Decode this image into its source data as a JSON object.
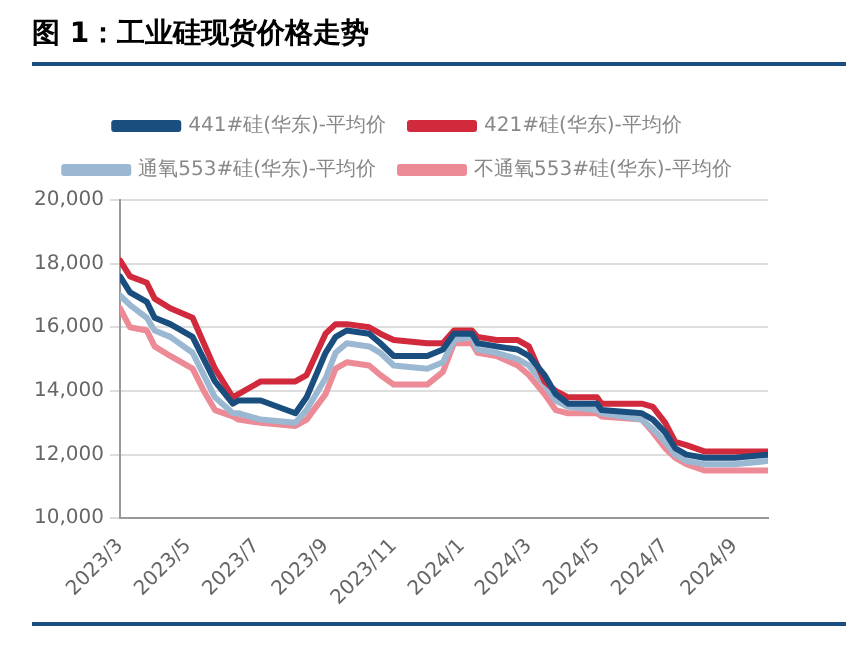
{
  "chart_data": {
    "type": "line",
    "title": "图 1：工业硅现货价格走势",
    "x": [
      "2023-03-01",
      "2023-03-10",
      "2023-03-25",
      "2023-04-01",
      "2023-04-15",
      "2023-05-05",
      "2023-05-15",
      "2023-05-25",
      "2023-06-10",
      "2023-06-15",
      "2023-07-05",
      "2023-08-05",
      "2023-08-15",
      "2023-09-01",
      "2023-09-10",
      "2023-09-20",
      "2023-10-10",
      "2023-10-20",
      "2023-11-01",
      "2023-12-01",
      "2023-12-15",
      "2023-12-25",
      "2024-01-10",
      "2024-01-15",
      "2024-02-01",
      "2024-02-20",
      "2024-03-01",
      "2024-03-15",
      "2024-03-25",
      "2024-04-05",
      "2024-05-01",
      "2024-05-05",
      "2024-06-10",
      "2024-06-20",
      "2024-07-01",
      "2024-07-10",
      "2024-07-20",
      "2024-08-05",
      "2024-09-01",
      "2024-10-01"
    ],
    "series": [
      {
        "name": "441#硅(华东)-平均价",
        "color": "#1a4e7e",
        "values": [
          17600,
          17100,
          16800,
          16300,
          16100,
          15700,
          15000,
          14300,
          13600,
          13700,
          13700,
          13300,
          13800,
          15200,
          15700,
          15900,
          15800,
          15500,
          15100,
          15100,
          15300,
          15800,
          15800,
          15500,
          15400,
          15300,
          15100,
          14500,
          13900,
          13600,
          13600,
          13400,
          13300,
          13100,
          12700,
          12200,
          12000,
          11900,
          11900,
          12000
        ]
      },
      {
        "name": "421#硅(华东)-平均价",
        "color": "#d12a3c",
        "values": [
          18100,
          17600,
          17400,
          16900,
          16600,
          16300,
          15500,
          14700,
          13800,
          13900,
          14300,
          14300,
          14500,
          15800,
          16100,
          16100,
          16000,
          15800,
          15600,
          15500,
          15500,
          15900,
          15900,
          15700,
          15600,
          15600,
          15400,
          14300,
          14000,
          13800,
          13800,
          13600,
          13600,
          13500,
          13000,
          12400,
          12300,
          12100,
          12100,
          12100
        ]
      },
      {
        "name": "通氧553#硅(华东)-平均价",
        "color": "#9bb8d3",
        "values": [
          17000,
          16700,
          16300,
          15900,
          15700,
          15200,
          14500,
          13800,
          13300,
          13300,
          13100,
          13000,
          13400,
          14400,
          15200,
          15500,
          15400,
          15200,
          14800,
          14700,
          14900,
          15600,
          15700,
          15300,
          15200,
          15000,
          14800,
          14200,
          13700,
          13500,
          13400,
          13300,
          13100,
          12800,
          12400,
          12000,
          11800,
          11700,
          11700,
          11800
        ]
      },
      {
        "name": "不通氧553#硅(华东)-平均价",
        "color": "#ec8a96",
        "values": [
          16600,
          16000,
          15900,
          15400,
          15100,
          14700,
          14000,
          13400,
          13200,
          13100,
          13000,
          12900,
          13100,
          13900,
          14700,
          14900,
          14800,
          14500,
          14200,
          14200,
          14600,
          15500,
          15500,
          15200,
          15100,
          14800,
          14500,
          13900,
          13400,
          13300,
          13300,
          13200,
          13100,
          12700,
          12200,
          11900,
          11700,
          11500,
          11500,
          11500
        ]
      }
    ],
    "xlim": [
      "2023-03-01",
      "2024-10-01"
    ],
    "xticks": [
      {
        "value": "2023-03-01",
        "label": "2023/3"
      },
      {
        "value": "2023-05-01",
        "label": "2023/5"
      },
      {
        "value": "2023-07-01",
        "label": "2023/7"
      },
      {
        "value": "2023-09-01",
        "label": "2023/9"
      },
      {
        "value": "2023-11-01",
        "label": "2023/11"
      },
      {
        "value": "2024-01-01",
        "label": "2024/1"
      },
      {
        "value": "2024-03-01",
        "label": "2024/3"
      },
      {
        "value": "2024-05-01",
        "label": "2024/5"
      },
      {
        "value": "2024-07-01",
        "label": "2024/7"
      },
      {
        "value": "2024-09-01",
        "label": "2024/9"
      }
    ],
    "ylim": [
      10000,
      20000
    ],
    "yticks": [
      {
        "value": 10000,
        "label": "10,000"
      },
      {
        "value": 12000,
        "label": "12,000"
      },
      {
        "value": 14000,
        "label": "14,000"
      },
      {
        "value": 16000,
        "label": "16,000"
      },
      {
        "value": 18000,
        "label": "18,000"
      },
      {
        "value": 20000,
        "label": "20,000"
      }
    ],
    "grid": "y",
    "legend": "top",
    "marker": "none",
    "line_style": "solid"
  }
}
